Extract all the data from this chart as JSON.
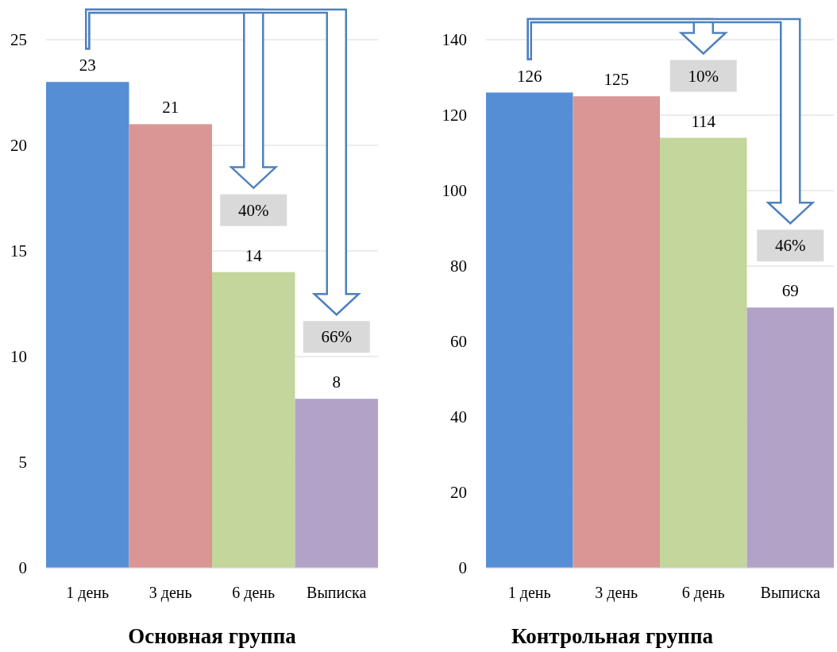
{
  "chart_data": [
    {
      "type": "bar",
      "title": "Основная группа",
      "categories": [
        "1 день",
        "3 день",
        "6 день",
        "Выписка"
      ],
      "values": [
        23,
        21,
        14,
        8
      ],
      "colors": [
        "#558ed5",
        "#d99694",
        "#c3d69b",
        "#b2a2c7"
      ],
      "ylim": [
        0,
        25
      ],
      "yticks": [
        0,
        5,
        10,
        15,
        20,
        25
      ],
      "grid": "y",
      "data_labels": true,
      "annotations": [
        "40%",
        "66%"
      ]
    },
    {
      "type": "bar",
      "title": "Контрольная группа",
      "categories": [
        "1 день",
        "3 день",
        "6 день",
        "Выписка"
      ],
      "values": [
        126,
        125,
        114,
        69
      ],
      "colors": [
        "#558ed5",
        "#d99694",
        "#c3d69b",
        "#b2a2c7"
      ],
      "ylim": [
        0,
        140
      ],
      "yticks": [
        0,
        20,
        40,
        60,
        80,
        100,
        120,
        140
      ],
      "grid": "y",
      "data_labels": true,
      "annotations": [
        "10%",
        "46%"
      ]
    }
  ]
}
